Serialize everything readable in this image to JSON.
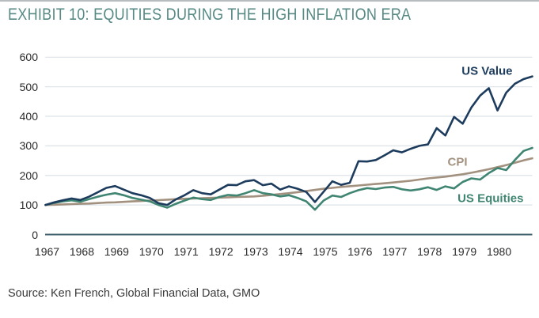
{
  "title": "EXHIBIT 10: EQUITIES DURING THE HIGH INFLATION ERA",
  "source": "Source: Ken French, Global Financial Data, GMO",
  "colors": {
    "title": "#578a85",
    "us_value": "#1d3c5d",
    "cpi": "#a3917f",
    "us_equities": "#3f8572",
    "gridline": "#dbe3e9",
    "axis_line": "#3d5f6d",
    "tick_text": "#2b2b2b",
    "source_text": "#3a3a3a"
  },
  "chart_data": {
    "type": "line",
    "title": "EXHIBIT 10: EQUITIES DURING THE HIGH INFLATION ERA",
    "xlabel": "",
    "ylabel": "",
    "xlim": [
      1967,
      1981
    ],
    "ylim": [
      0,
      600
    ],
    "grid": "horizontal",
    "legend_position": "inline-labels-near-lines",
    "y_ticks": [
      0,
      100,
      200,
      300,
      400,
      500,
      600
    ],
    "x_tick_labels": [
      "1967",
      "1968",
      "1969",
      "1970",
      "1971",
      "1972",
      "1973",
      "1974",
      "1975",
      "1976",
      "1977",
      "1978",
      "1979",
      "1980"
    ],
    "x_start": 1967,
    "x_step": 0.25,
    "series": [
      {
        "name": "CPI",
        "color": "#a3917f",
        "values": [
          100,
          101,
          102,
          103,
          104,
          105,
          106.5,
          108,
          109,
          110.5,
          112,
          113.5,
          115,
          116.5,
          118,
          119.5,
          121,
          122,
          123,
          124,
          125,
          126,
          127,
          128,
          129,
          131.5,
          134,
          137,
          140,
          143.5,
          147,
          151,
          155,
          158,
          161,
          163.5,
          166,
          168.5,
          171,
          173.5,
          176,
          179,
          182,
          186,
          190,
          193,
          196,
          200,
          204,
          209,
          215,
          221,
          228,
          235,
          243,
          251,
          258
        ]
      },
      {
        "name": "US Equities",
        "color": "#3f8572",
        "values": [
          100,
          107,
          112,
          116,
          111,
          120,
          128,
          135,
          140,
          133,
          124,
          118,
          112,
          100,
          91,
          104,
          115,
          125,
          120,
          117,
          127,
          134,
          132,
          140,
          150,
          140,
          136,
          129,
          133,
          124,
          112,
          84,
          115,
          132,
          127,
          140,
          150,
          157,
          154,
          159,
          161,
          153,
          149,
          153,
          160,
          151,
          163,
          156,
          178,
          190,
          186,
          208,
          225,
          218,
          252,
          283,
          293
        ]
      },
      {
        "name": "US Value",
        "color": "#1d3c5d",
        "values": [
          100,
          109,
          116,
          122,
          117,
          128,
          143,
          158,
          164,
          152,
          140,
          133,
          124,
          106,
          100,
          119,
          133,
          150,
          140,
          136,
          152,
          168,
          167,
          180,
          184,
          167,
          172,
          152,
          163,
          155,
          144,
          110,
          145,
          180,
          168,
          175,
          248,
          247,
          252,
          268,
          285,
          278,
          290,
          300,
          305,
          360,
          335,
          398,
          375,
          430,
          470,
          495,
          420,
          480,
          510,
          526,
          535
        ]
      }
    ],
    "annotations": [
      {
        "text": "US Value",
        "x": 1979.7,
        "y": 552,
        "color": "#1d3c5d"
      },
      {
        "text": "CPI",
        "x": 1978.85,
        "y": 246,
        "color": "#a3917f"
      },
      {
        "text": "US Equities",
        "x": 1979.8,
        "y": 122,
        "color": "#3f8572"
      }
    ]
  }
}
